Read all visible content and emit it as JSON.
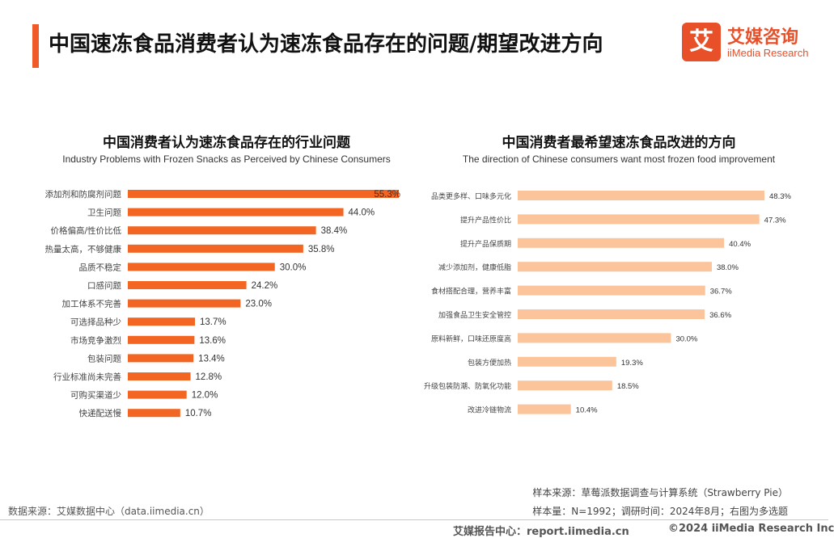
{
  "header": {
    "title": "中国速冻食品消费者认为速冻食品存在的问题/期望改进方向",
    "logo_mark": "艾",
    "logo_cn": "艾媒咨询",
    "logo_en": "iiMedia Research"
  },
  "chart_data": [
    {
      "type": "bar",
      "orientation": "horizontal",
      "title": "中国消费者认为速冻食品存在的行业问题",
      "subtitle": "Industry Problems with Frozen Snacks as Perceived by Chinese Consumers",
      "categories": [
        "添加剂和防腐剂问题",
        "卫生问题",
        "价格偏高/性价比低",
        "热量太高，不够健康",
        "品质不稳定",
        "口感问题",
        "加工体系不完善",
        "可选择品种少",
        "市场竞争激烈",
        "包装问题",
        "行业标准尚未完善",
        "可购买渠道少",
        "快递配送慢"
      ],
      "values": [
        55.3,
        44.0,
        38.4,
        35.8,
        30.0,
        24.2,
        23.0,
        13.7,
        13.6,
        13.4,
        12.8,
        12.0,
        10.7
      ],
      "value_labels": [
        "55.3%",
        "44.0%",
        "38.4%",
        "35.8%",
        "30.0%",
        "24.2%",
        "23.0%",
        "13.7%",
        "13.6%",
        "13.4%",
        "12.8%",
        "12.0%",
        "10.7%"
      ],
      "unit": "%",
      "xlim": [
        0,
        55.3
      ],
      "color": "#f26522",
      "grid": false,
      "legend": "none"
    },
    {
      "type": "bar",
      "orientation": "horizontal",
      "title": "中国消费者最希望速冻食品改进的方向",
      "subtitle": "The direction of Chinese consumers want most frozen food improvement",
      "categories": [
        "品类更多样、口味多元化",
        "提升产品性价比",
        "提升产品保质期",
        "减少添加剂，健康低脂",
        "食材搭配合理，营养丰富",
        "加强食品卫生安全管控",
        "原料新鲜，口味还原度高",
        "包装方便加热",
        "升级包装防潮、防氧化功能",
        "改进冷链物流"
      ],
      "values": [
        48.3,
        47.3,
        40.4,
        38.0,
        36.7,
        36.6,
        30.0,
        19.3,
        18.5,
        10.4
      ],
      "value_labels": [
        "48.3%",
        "47.3%",
        "40.4%",
        "38.0%",
        "36.7%",
        "36.6%",
        "30.0%",
        "19.3%",
        "18.5%",
        "10.4%"
      ],
      "unit": "%",
      "xlim": [
        0,
        48.3
      ],
      "color": "#fcc49a",
      "grid": false,
      "legend": "none"
    }
  ],
  "footer": {
    "data_source": "数据来源：艾媒数据中心（data.iimedia.cn）",
    "sample_source": "样本来源：草莓派数据调查与计算系统（Strawberry Pie）",
    "sample_info": "样本量：N=1992；调研时间：2024年8月；右图为多选题",
    "brand": "艾媒报告中心：report.iimedia.cn",
    "copyright": "©2024  iiMedia Research Inc"
  }
}
